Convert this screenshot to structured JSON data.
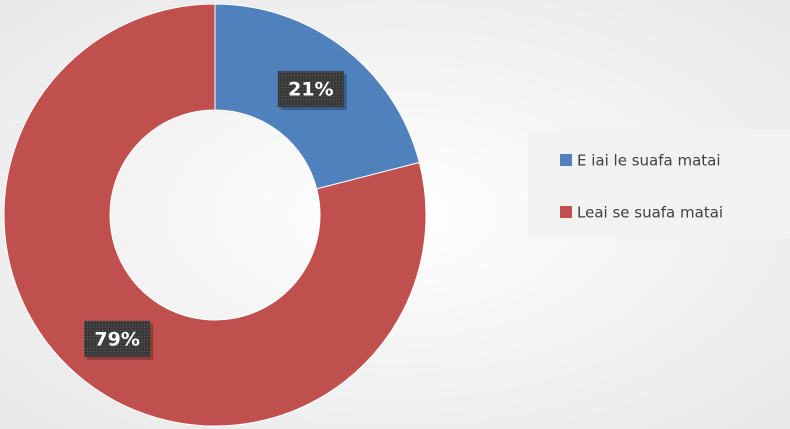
{
  "chart_data": {
    "type": "donut",
    "categories": [
      "E iai le suafa matai",
      "Leai se suafa matai"
    ],
    "values": [
      21,
      79
    ],
    "value_labels": [
      "21%",
      "79%"
    ],
    "colors": [
      "#4f81bd",
      "#c0504d"
    ],
    "legend": "right"
  }
}
